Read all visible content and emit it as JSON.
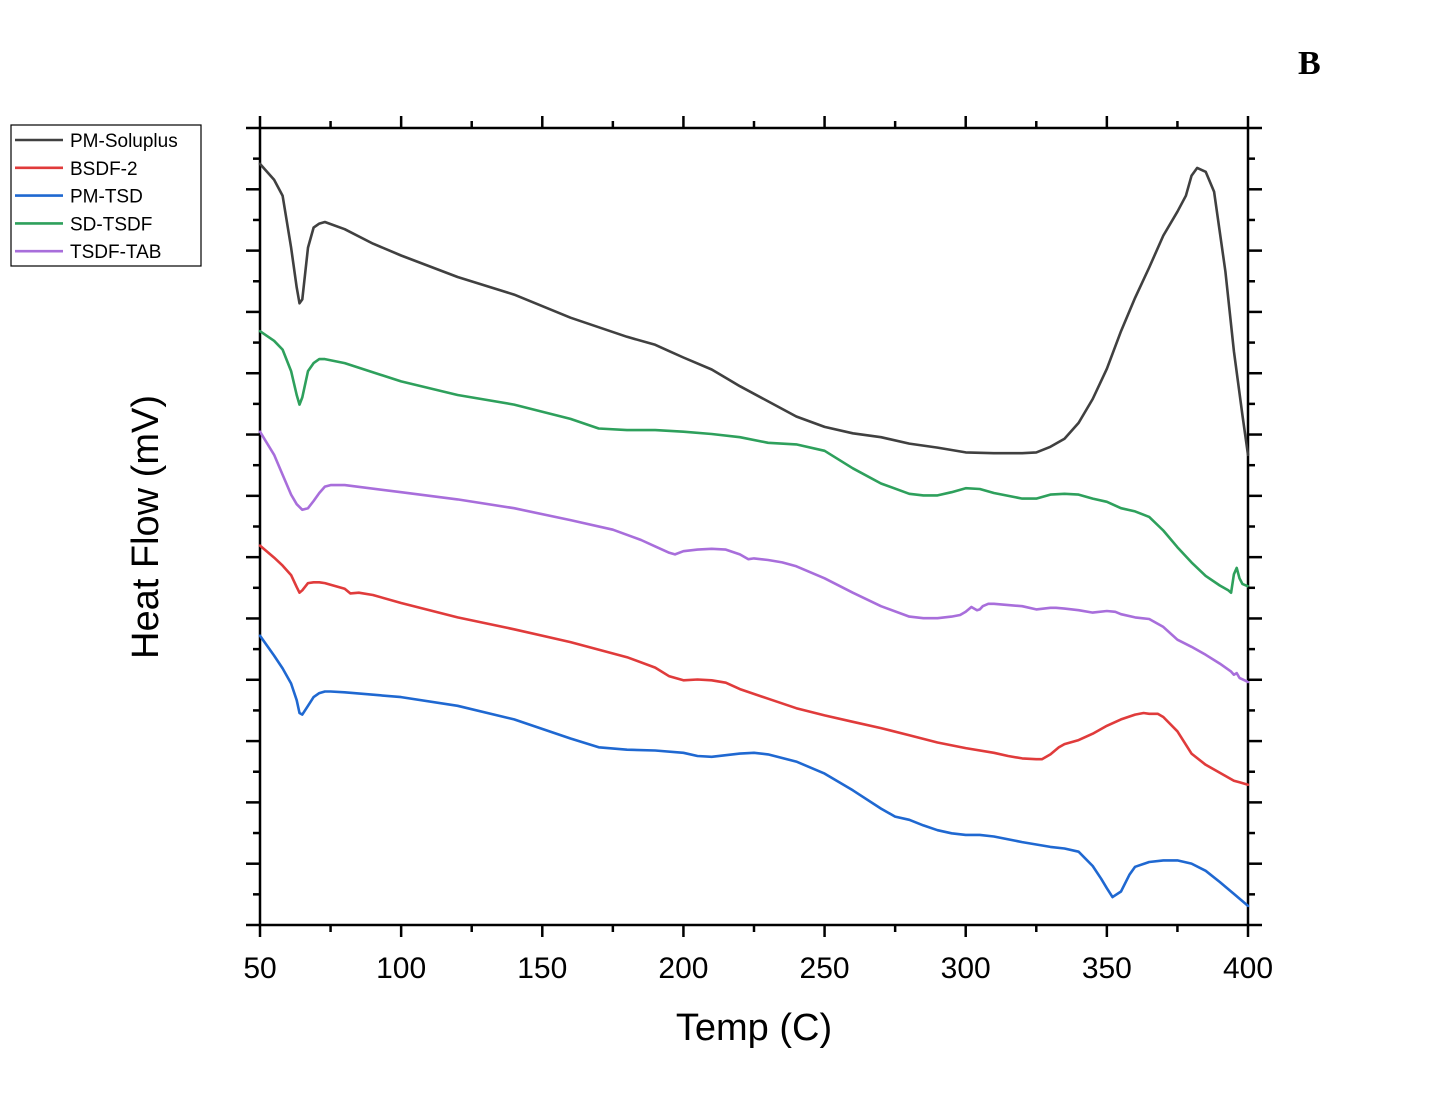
{
  "panel_label": "B",
  "chart_data": {
    "type": "line",
    "title": "",
    "xlabel": "Temp (C)",
    "ylabel": "Heat Flow (mV)",
    "xlim": [
      50,
      400
    ],
    "ylim": [
      0,
      100
    ],
    "x_ticks": [
      50,
      100,
      150,
      200,
      250,
      300,
      350,
      400
    ],
    "x_tick_labels": [
      "50",
      "100",
      "150",
      "200",
      "250",
      "300",
      "350",
      "400"
    ],
    "y_tick_labels_shown": false,
    "y_units": "arbitrary (offset, unlabeled)",
    "grid": false,
    "legend_position": "top-left, outside plot",
    "series": [
      {
        "name": "PM-Soluplus",
        "color": "#404040",
        "x": [
          50,
          55,
          58,
          61,
          63,
          64,
          65,
          67,
          69,
          71,
          73,
          80,
          90,
          100,
          120,
          140,
          160,
          180,
          190,
          195,
          200,
          210,
          220,
          240,
          250,
          260,
          270,
          280,
          290,
          300,
          310,
          320,
          325,
          330,
          335,
          340,
          345,
          350,
          355,
          360,
          365,
          370,
          375,
          378,
          380,
          382,
          385,
          388,
          392,
          395,
          398,
          400
        ],
        "y": [
          95.5,
          93.5,
          91.5,
          85,
          80,
          78,
          78.5,
          85,
          87.5,
          88,
          88.2,
          87.3,
          85.5,
          84,
          81.3,
          79.1,
          76.2,
          73.8,
          72.8,
          72,
          71.2,
          69.7,
          67.6,
          63.8,
          62.5,
          61.7,
          61.2,
          60.4,
          59.9,
          59.3,
          59.2,
          59.2,
          59.3,
          60,
          61,
          63,
          66,
          69.8,
          74.5,
          78.7,
          82.5,
          86.5,
          89.5,
          91.5,
          94,
          95,
          94.5,
          92,
          82,
          72,
          64,
          59
        ]
      },
      {
        "name": "SD-TSDF",
        "color": "#2ea05c",
        "x": [
          50,
          55,
          58,
          61,
          63,
          64,
          65,
          67,
          69,
          71,
          73,
          80,
          100,
          120,
          140,
          160,
          170,
          180,
          190,
          200,
          210,
          220,
          230,
          240,
          250,
          260,
          270,
          280,
          285,
          290,
          295,
          300,
          305,
          310,
          320,
          325,
          330,
          335,
          340,
          345,
          350,
          355,
          360,
          365,
          370,
          375,
          380,
          385,
          390,
          393,
          394,
          395,
          396,
          397,
          398,
          400
        ],
        "y": [
          74.5,
          73.3,
          72.2,
          69.5,
          66.5,
          65.3,
          66.2,
          69.5,
          70.5,
          71,
          71,
          70.5,
          68.2,
          66.5,
          65.3,
          63.5,
          62.3,
          62.1,
          62.1,
          61.9,
          61.6,
          61.2,
          60.5,
          60.3,
          59.5,
          57.3,
          55.4,
          54.1,
          53.9,
          53.9,
          54.3,
          54.8,
          54.7,
          54.2,
          53.5,
          53.5,
          54,
          54.1,
          54,
          53.5,
          53.1,
          52.3,
          51.9,
          51.2,
          49.5,
          47.4,
          45.5,
          43.8,
          42.6,
          42,
          41.7,
          44,
          44.8,
          43.5,
          42.8,
          42.5
        ]
      },
      {
        "name": "TSDF-TAB",
        "color": "#a86edb",
        "x": [
          50,
          55,
          58,
          61,
          63,
          65,
          67,
          69,
          71,
          73,
          75,
          80,
          100,
          120,
          140,
          160,
          175,
          185,
          190,
          195,
          197,
          200,
          205,
          210,
          215,
          220,
          223,
          225,
          230,
          235,
          240,
          250,
          260,
          270,
          280,
          285,
          290,
          295,
          298,
          300,
          302,
          304,
          305,
          306,
          308,
          310,
          320,
          325,
          330,
          332,
          335,
          340,
          345,
          350,
          353,
          355,
          360,
          365,
          370,
          375,
          380,
          385,
          390,
          394,
          395,
          396,
          397,
          400
        ],
        "y": [
          61.9,
          59,
          56.5,
          54,
          52.8,
          52.1,
          52.3,
          53.2,
          54.2,
          55,
          55.2,
          55.2,
          54.3,
          53.4,
          52.3,
          50.8,
          49.6,
          48.3,
          47.5,
          46.7,
          46.5,
          46.9,
          47.1,
          47.2,
          47.1,
          46.5,
          45.9,
          46,
          45.8,
          45.5,
          45,
          43.5,
          41.7,
          40,
          38.7,
          38.5,
          38.5,
          38.7,
          38.9,
          39.3,
          39.9,
          39.5,
          39.6,
          40,
          40.3,
          40.3,
          40,
          39.6,
          39.8,
          39.8,
          39.7,
          39.5,
          39.2,
          39.4,
          39.3,
          39,
          38.6,
          38.4,
          37.4,
          35.8,
          34.9,
          33.9,
          32.8,
          31.8,
          31.4,
          31.6,
          31,
          30.5
        ]
      },
      {
        "name": "BSDF-2",
        "color": "#e03b3b",
        "x": [
          50,
          55,
          58,
          61,
          63,
          64,
          65,
          67,
          69,
          71,
          73,
          75,
          80,
          82,
          85,
          90,
          100,
          120,
          140,
          160,
          180,
          190,
          195,
          200,
          205,
          210,
          215,
          220,
          230,
          240,
          250,
          260,
          270,
          280,
          290,
          300,
          310,
          315,
          320,
          325,
          327,
          330,
          333,
          335,
          340,
          345,
          350,
          355,
          360,
          363,
          365,
          368,
          370,
          375,
          380,
          385,
          390,
          395,
          397,
          400
        ],
        "y": [
          47.6,
          46.1,
          45.1,
          43.9,
          42.4,
          41.7,
          42,
          42.9,
          43,
          43,
          42.9,
          42.7,
          42.2,
          41.6,
          41.7,
          41.4,
          40.4,
          38.6,
          37.1,
          35.5,
          33.6,
          32.3,
          31.2,
          30.7,
          30.8,
          30.7,
          30.4,
          29.6,
          28.4,
          27.2,
          26.3,
          25.5,
          24.7,
          23.8,
          22.9,
          22.2,
          21.6,
          21.2,
          20.9,
          20.8,
          20.8,
          21.4,
          22.3,
          22.7,
          23.2,
          24,
          25,
          25.8,
          26.4,
          26.6,
          26.5,
          26.5,
          26.1,
          24.3,
          21.5,
          20.1,
          19.1,
          18.1,
          17.9,
          17.6
        ]
      },
      {
        "name": "PM-TSD",
        "color": "#1f68d1",
        "x": [
          50,
          55,
          58,
          61,
          63,
          64,
          65,
          67,
          69,
          71,
          73,
          75,
          80,
          100,
          120,
          140,
          160,
          170,
          180,
          190,
          200,
          205,
          210,
          215,
          220,
          225,
          230,
          240,
          250,
          260,
          270,
          275,
          280,
          285,
          290,
          295,
          300,
          305,
          310,
          320,
          330,
          335,
          340,
          345,
          348,
          350,
          352,
          355,
          358,
          360,
          365,
          370,
          375,
          380,
          385,
          390,
          395,
          400
        ],
        "y": [
          36.3,
          33.8,
          32.2,
          30.3,
          28.2,
          26.6,
          26.4,
          27.5,
          28.6,
          29.1,
          29.3,
          29.3,
          29.2,
          28.6,
          27.5,
          25.8,
          23.4,
          22.3,
          22,
          21.9,
          21.6,
          21.2,
          21.1,
          21.3,
          21.5,
          21.6,
          21.4,
          20.5,
          19,
          16.9,
          14.6,
          13.6,
          13.2,
          12.5,
          11.9,
          11.5,
          11.3,
          11.3,
          11.1,
          10.4,
          9.8,
          9.6,
          9.2,
          7.4,
          5.8,
          4.6,
          3.5,
          4.2,
          6.3,
          7.3,
          7.9,
          8.1,
          8.1,
          7.7,
          6.8,
          5.4,
          3.9,
          2.4
        ]
      }
    ]
  }
}
